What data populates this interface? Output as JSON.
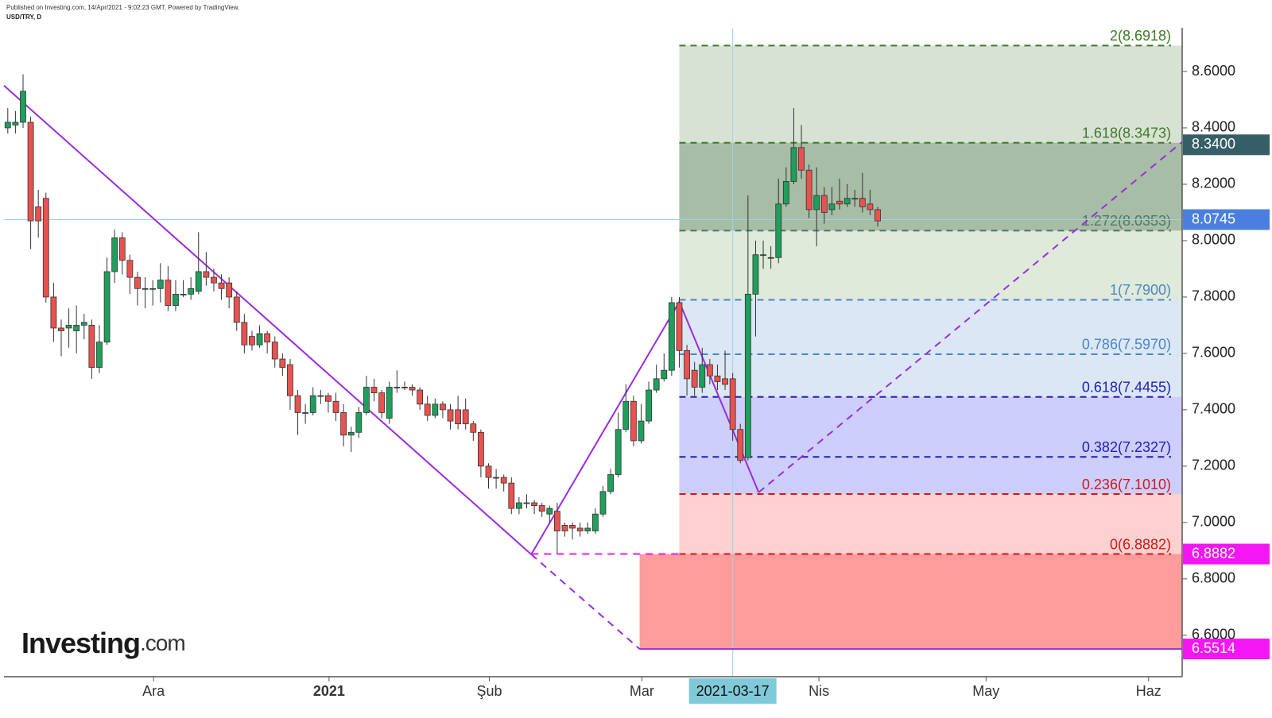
{
  "chart_data": {
    "type": "candlestick",
    "published": "Published on Investing.com, 14/Apr/2021 - 9:02:23 GMT, Powered by TradingView.",
    "symbol": "USD/TRY, D",
    "logo": {
      "brand": "Investing",
      "suffix": ".com"
    },
    "up_color": "#1f9e5c",
    "down_color": "#e8524f",
    "series": {
      "open": [
        8.4,
        8.41,
        8.42,
        8.42,
        8.12,
        8.15,
        7.8,
        7.69,
        7.69,
        7.68,
        7.7,
        7.7,
        7.55,
        7.64,
        7.89,
        8.01,
        7.93,
        7.87,
        7.83,
        7.83,
        7.83,
        7.86,
        7.77,
        7.81,
        7.81,
        7.82,
        7.89,
        7.87,
        7.85,
        7.85,
        7.8,
        7.71,
        7.66,
        7.63,
        7.67,
        7.64,
        7.58,
        7.56,
        7.45,
        7.39,
        7.39,
        7.45,
        7.45,
        7.43,
        7.39,
        7.31,
        7.32,
        7.39,
        7.48,
        7.46,
        7.37,
        7.48,
        7.48,
        7.48,
        7.47,
        7.42,
        7.38,
        7.42,
        7.4,
        7.4,
        7.4,
        7.35,
        7.32,
        7.2,
        7.16,
        7.16,
        7.14,
        7.05,
        7.07,
        7.07,
        7.06,
        7.03,
        7.04,
        6.99,
        6.99,
        6.98,
        6.97,
        6.97,
        7.03,
        7.11,
        7.17,
        7.33,
        7.43,
        7.29,
        7.36,
        7.47,
        7.51,
        7.54,
        7.78,
        7.61,
        7.54,
        7.48,
        7.56,
        7.52,
        7.51,
        7.51,
        7.33,
        7.23,
        7.81,
        7.95,
        7.94,
        7.94,
        8.13,
        8.21,
        8.33,
        8.25,
        8.11,
        8.16,
        8.11,
        8.14,
        8.13,
        8.15,
        8.15,
        8.13,
        8.11
      ],
      "high": [
        8.47,
        8.46,
        8.59,
        8.44,
        8.18,
        8.17,
        7.85,
        7.72,
        7.76,
        7.77,
        7.74,
        7.72,
        7.7,
        7.94,
        8.04,
        8.03,
        7.95,
        7.89,
        7.87,
        7.86,
        7.92,
        7.91,
        7.86,
        7.86,
        7.87,
        8.03,
        7.96,
        7.9,
        7.88,
        7.87,
        7.82,
        7.74,
        7.68,
        7.7,
        7.68,
        7.66,
        7.6,
        7.58,
        7.47,
        7.42,
        7.48,
        7.47,
        7.46,
        7.46,
        7.42,
        7.34,
        7.41,
        7.52,
        7.51,
        7.47,
        7.5,
        7.54,
        7.5,
        7.49,
        7.48,
        7.45,
        7.44,
        7.43,
        7.42,
        7.45,
        7.44,
        7.36,
        7.33,
        7.21,
        7.19,
        7.17,
        7.16,
        7.09,
        7.1,
        7.08,
        7.07,
        7.06,
        7.07,
        7.0,
        7.0,
        7.0,
        7.0,
        7.05,
        7.13,
        7.19,
        7.39,
        7.49,
        7.45,
        7.42,
        7.5,
        7.56,
        7.6,
        7.8,
        7.8,
        7.63,
        7.57,
        7.62,
        7.58,
        7.56,
        7.61,
        7.53,
        7.35,
        8.16,
        8.0,
        8.0,
        7.98,
        8.22,
        8.26,
        8.47,
        8.41,
        8.27,
        8.26,
        8.19,
        8.19,
        8.22,
        8.2,
        8.18,
        8.24,
        8.18,
        8.12
      ],
      "low": [
        8.38,
        8.38,
        8.4,
        7.97,
        8.01,
        7.78,
        7.64,
        7.59,
        7.62,
        7.6,
        7.65,
        7.51,
        7.53,
        7.63,
        7.85,
        7.88,
        7.81,
        7.77,
        7.76,
        7.77,
        7.78,
        7.75,
        7.75,
        7.8,
        7.79,
        7.81,
        7.84,
        7.82,
        7.79,
        7.76,
        7.68,
        7.6,
        7.61,
        7.62,
        7.6,
        7.55,
        7.52,
        7.4,
        7.31,
        7.35,
        7.38,
        7.42,
        7.39,
        7.36,
        7.27,
        7.25,
        7.3,
        7.38,
        7.43,
        7.37,
        7.35,
        7.46,
        7.47,
        7.45,
        7.4,
        7.36,
        7.37,
        7.37,
        7.33,
        7.33,
        7.33,
        7.29,
        7.16,
        7.12,
        7.12,
        7.11,
        7.03,
        7.03,
        7.05,
        7.03,
        7.02,
        7.0,
        6.89,
        6.95,
        6.94,
        6.95,
        6.96,
        6.96,
        7.02,
        7.1,
        7.16,
        7.32,
        7.27,
        7.28,
        7.35,
        7.46,
        7.5,
        7.52,
        7.55,
        7.45,
        7.45,
        7.46,
        7.49,
        7.47,
        7.47,
        7.29,
        7.21,
        7.22,
        7.66,
        7.9,
        7.9,
        7.92,
        8.12,
        8.2,
        8.22,
        8.08,
        7.98,
        8.06,
        8.09,
        8.11,
        8.12,
        8.12,
        8.1,
        8.09,
        8.05
      ],
      "close": [
        8.42,
        8.42,
        8.53,
        8.07,
        8.07,
        7.8,
        7.69,
        7.68,
        7.7,
        7.7,
        7.71,
        7.55,
        7.64,
        7.89,
        8.01,
        7.93,
        7.87,
        7.83,
        7.83,
        7.83,
        7.86,
        7.77,
        7.81,
        7.81,
        7.83,
        7.89,
        7.87,
        7.85,
        7.83,
        7.8,
        7.71,
        7.63,
        7.63,
        7.67,
        7.64,
        7.58,
        7.55,
        7.45,
        7.39,
        7.39,
        7.45,
        7.45,
        7.43,
        7.39,
        7.31,
        7.32,
        7.39,
        7.48,
        7.46,
        7.39,
        7.48,
        7.48,
        7.48,
        7.47,
        7.42,
        7.38,
        7.42,
        7.4,
        7.36,
        7.35,
        7.35,
        7.32,
        7.2,
        7.16,
        7.16,
        7.14,
        7.05,
        7.07,
        7.07,
        7.06,
        7.04,
        7.05,
        6.97,
        6.97,
        6.98,
        6.97,
        6.98,
        7.03,
        7.11,
        7.17,
        7.33,
        7.43,
        7.29,
        7.36,
        7.47,
        7.51,
        7.54,
        7.78,
        7.61,
        7.51,
        7.48,
        7.56,
        7.52,
        7.5,
        7.49,
        7.33,
        7.22,
        7.81,
        7.95,
        7.95,
        7.94,
        8.13,
        8.21,
        8.33,
        8.25,
        8.11,
        8.16,
        8.1,
        8.13,
        8.13,
        8.15,
        8.15,
        8.12,
        8.11,
        8.07
      ]
    },
    "xlim": [
      -0.5,
      153.9
    ],
    "xticks": [
      {
        "value": 19.1,
        "label": "Ara"
      },
      {
        "value": 42.1,
        "label": "2021"
      },
      {
        "value": 63.1,
        "label": "Şub"
      },
      {
        "value": 83.1,
        "label": "Mar"
      },
      {
        "value": 106.3,
        "label": "Nis"
      },
      {
        "value": 128.2,
        "label": "May"
      },
      {
        "value": 149.5,
        "label": "Haz"
      }
    ],
    "ylim": [
      6.453,
      8.755
    ],
    "yticks": [
      {
        "value": 6.6,
        "label": "6.6000"
      },
      {
        "value": 6.8,
        "label": "6.8000"
      },
      {
        "value": 7.0,
        "label": "7.0000"
      },
      {
        "value": 7.2,
        "label": "7.2000"
      },
      {
        "value": 7.4,
        "label": "7.4000"
      },
      {
        "value": 7.6,
        "label": "7.6000"
      },
      {
        "value": 7.8,
        "label": "7.8000"
      },
      {
        "value": 8.0,
        "label": "8.0000"
      },
      {
        "value": 8.2,
        "label": "8.2000"
      },
      {
        "value": 8.4,
        "label": "8.4000"
      },
      {
        "value": 8.6,
        "label": "8.6000"
      }
    ],
    "fib": {
      "x_start": 88,
      "levels": [
        {
          "value": 8.6918,
          "label": "2(8.6918)",
          "color": "#3f7a26"
        },
        {
          "value": 8.3473,
          "label": "1.618(8.3473)",
          "color": "#3f7a26"
        },
        {
          "value": 8.0353,
          "label": "1.272(8.0353)",
          "color": "#4f7a66"
        },
        {
          "value": 7.79,
          "label": "1(7.7900)",
          "color": "#4a86c8"
        },
        {
          "value": 7.597,
          "label": "0.786(7.5970)",
          "color": "#4a86c8"
        },
        {
          "value": 7.4455,
          "label": "0.618(7.4455)",
          "color": "#2020b8"
        },
        {
          "value": 7.2327,
          "label": "0.382(7.2327)",
          "color": "#2020b8"
        },
        {
          "value": 7.101,
          "label": "0.236(7.1010)",
          "color": "#d01818"
        },
        {
          "value": 6.8882,
          "label": "0(6.8882)",
          "color": "#d01818"
        }
      ],
      "zone_colors": [
        "#d7e2d5",
        "#a8bda6",
        "#dfeada",
        "#dbe7f5",
        "#dbe7f5",
        "#cdcefb",
        "#cdcefb",
        "#fed1d1"
      ]
    },
    "target_box": {
      "x_start": 82.8,
      "color": "#fe9b9b"
    },
    "price_labels": [
      {
        "value": 8.34,
        "label": "8.3400",
        "color": "#355e66"
      },
      {
        "value": 8.0745,
        "label": "8.0745",
        "color": "#4a7fe0"
      },
      {
        "value": 6.8882,
        "label": "6.8882",
        "color": "#f516f5"
      },
      {
        "value": 6.5514,
        "label": "6.5514",
        "color": "#f516f5"
      }
    ],
    "crosshair": {
      "x": 95,
      "label": "2021-03-17"
    },
    "drawings": [
      {
        "x": [
          -0.5,
          68.6
        ],
        "y": [
          8.55,
          6.887
        ],
        "dash": false,
        "color": "#9b2ce0"
      },
      {
        "x": [
          68.6,
          82.8
        ],
        "y": [
          6.887,
          6.5514
        ],
        "dash": true,
        "color": "#9b2ce0"
      },
      {
        "x": [
          68.6,
          88
        ],
        "y": [
          6.8882,
          6.8882
        ],
        "dash": true,
        "color": "#f516f5"
      },
      {
        "x": [
          68.6,
          88,
          98.4
        ],
        "y": [
          6.887,
          7.783,
          7.107
        ],
        "dash": false,
        "color": "#9b2ce0"
      },
      {
        "x": [
          98.4,
          153.9
        ],
        "y": [
          7.107,
          8.35
        ],
        "dash": true,
        "color": "#9b2ce0"
      },
      {
        "x": [
          82.8,
          153.9
        ],
        "y": [
          6.5514,
          6.5514
        ],
        "dash": false,
        "color": "#9b2ce0"
      }
    ]
  }
}
